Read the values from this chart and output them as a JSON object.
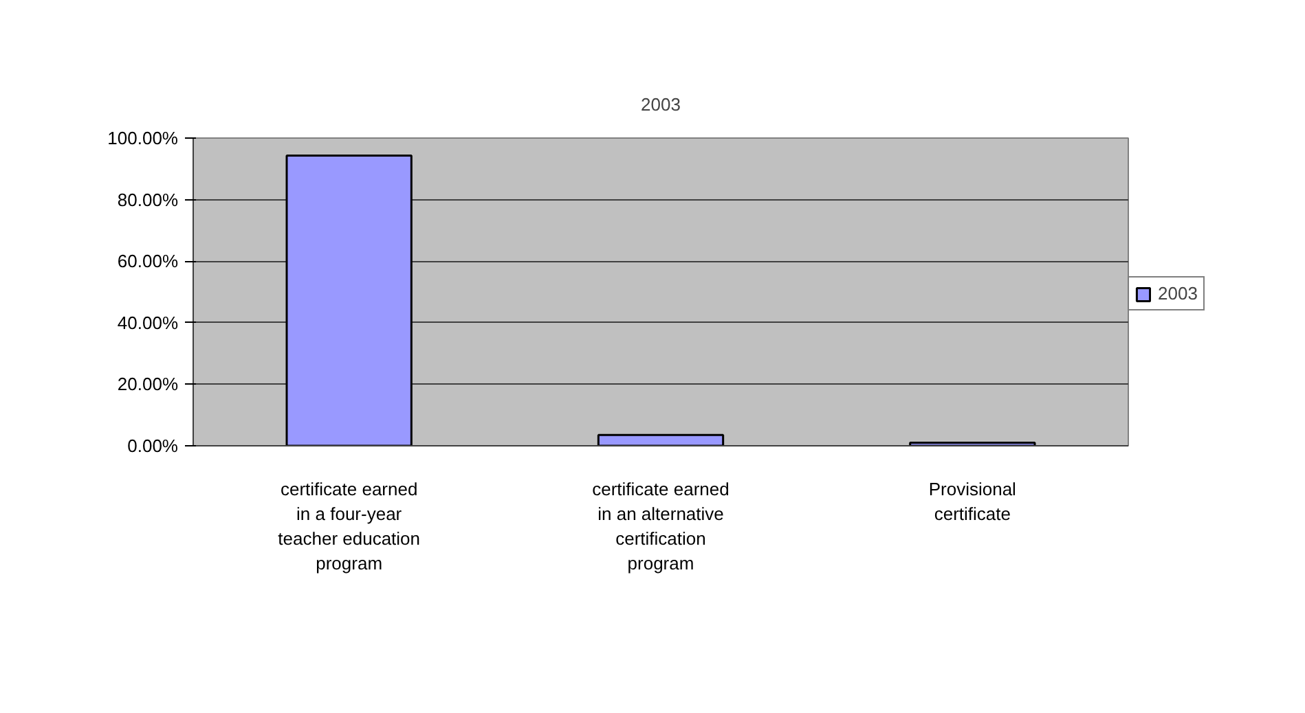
{
  "chart_data": {
    "type": "bar",
    "title": "2003",
    "categories": [
      "certificate earned in a four-year teacher education program",
      "certificate earned in an alternative certification program",
      "Provisional certificate"
    ],
    "series": [
      {
        "name": "2003",
        "color": "#9999ff",
        "values": [
          94.3,
          3.5,
          1
        ]
      }
    ],
    "ylim": [
      0,
      100
    ],
    "yticks": [
      {
        "value": 0,
        "label": "0.00%"
      },
      {
        "value": 20,
        "label": "20.00%"
      },
      {
        "value": 40,
        "label": "40.00%"
      },
      {
        "value": 60,
        "label": "60.00%"
      },
      {
        "value": 80,
        "label": "80.00%"
      },
      {
        "value": 100,
        "label": "100.00%"
      }
    ],
    "grid": "y",
    "legend": "right"
  }
}
